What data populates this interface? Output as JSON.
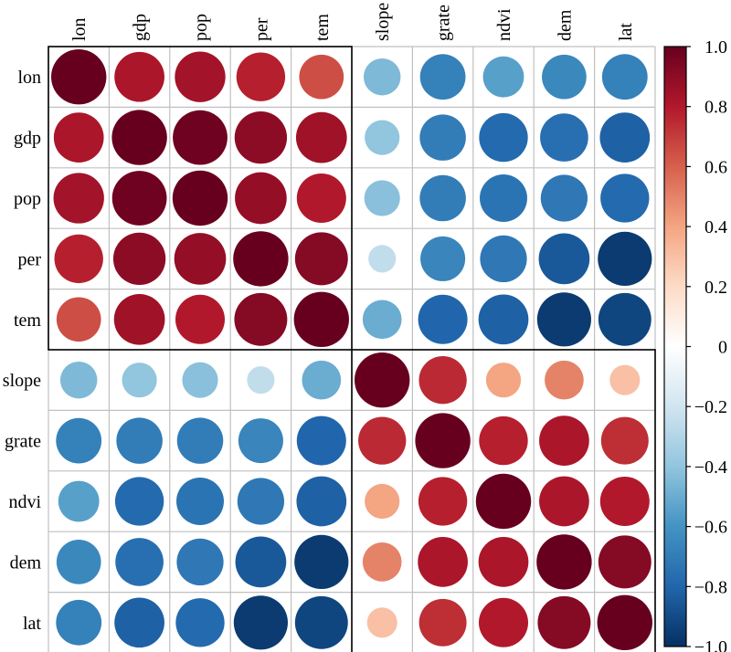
{
  "chart_data": {
    "type": "heatmap",
    "title": "",
    "xlabel": "",
    "ylabel": "",
    "variables": [
      "lon",
      "gdp",
      "pop",
      "per",
      "tem",
      "slope",
      "grate",
      "ndvi",
      "dem",
      "lat"
    ],
    "matrix": [
      [
        1.0,
        0.82,
        0.84,
        0.78,
        0.65,
        -0.45,
        -0.68,
        -0.55,
        -0.65,
        -0.68
      ],
      [
        0.82,
        1.0,
        0.98,
        0.9,
        0.85,
        -0.4,
        -0.7,
        -0.78,
        -0.76,
        -0.82
      ],
      [
        0.84,
        0.98,
        1.0,
        0.88,
        0.8,
        -0.42,
        -0.7,
        -0.74,
        -0.72,
        -0.78
      ],
      [
        0.78,
        0.9,
        0.88,
        1.0,
        0.92,
        -0.25,
        -0.66,
        -0.72,
        -0.85,
        -0.96
      ],
      [
        0.65,
        0.85,
        0.8,
        0.92,
        1.0,
        -0.5,
        -0.8,
        -0.82,
        -0.96,
        -0.92
      ],
      [
        -0.45,
        -0.4,
        -0.42,
        -0.25,
        -0.5,
        1.0,
        0.75,
        0.4,
        0.5,
        0.3
      ],
      [
        -0.68,
        -0.7,
        -0.7,
        -0.66,
        -0.8,
        0.75,
        1.0,
        0.78,
        0.82,
        0.74
      ],
      [
        -0.55,
        -0.78,
        -0.74,
        -0.72,
        -0.82,
        0.4,
        0.78,
        1.0,
        0.82,
        0.8
      ],
      [
        -0.65,
        -0.76,
        -0.72,
        -0.85,
        -0.96,
        0.5,
        0.82,
        0.82,
        1.0,
        0.92
      ],
      [
        -0.68,
        -0.82,
        -0.78,
        -0.96,
        -0.92,
        0.3,
        0.74,
        0.8,
        0.92,
        1.0
      ]
    ],
    "clusters": [
      {
        "start": 0,
        "end": 4
      },
      {
        "start": 5,
        "end": 9
      }
    ],
    "colorbar": {
      "range": [
        -1.0,
        1.0
      ],
      "ticks": [
        "1.0",
        "0.8",
        "0.6",
        "0.4",
        "0.2",
        "0",
        "−0.2",
        "−0.4",
        "−0.6",
        "−0.8",
        "−1.0"
      ],
      "tick_values": [
        1.0,
        0.8,
        0.6,
        0.4,
        0.2,
        0.0,
        -0.2,
        -0.4,
        -0.6,
        -0.8,
        -1.0
      ],
      "colors": [
        "#67001F",
        "#B2182B",
        "#D6604D",
        "#F4A582",
        "#FDDBC7",
        "#FFFFFF",
        "#D1E5F0",
        "#92C5DE",
        "#4393C3",
        "#2166AC",
        "#053061"
      ]
    },
    "grid": true,
    "legend": "right"
  }
}
